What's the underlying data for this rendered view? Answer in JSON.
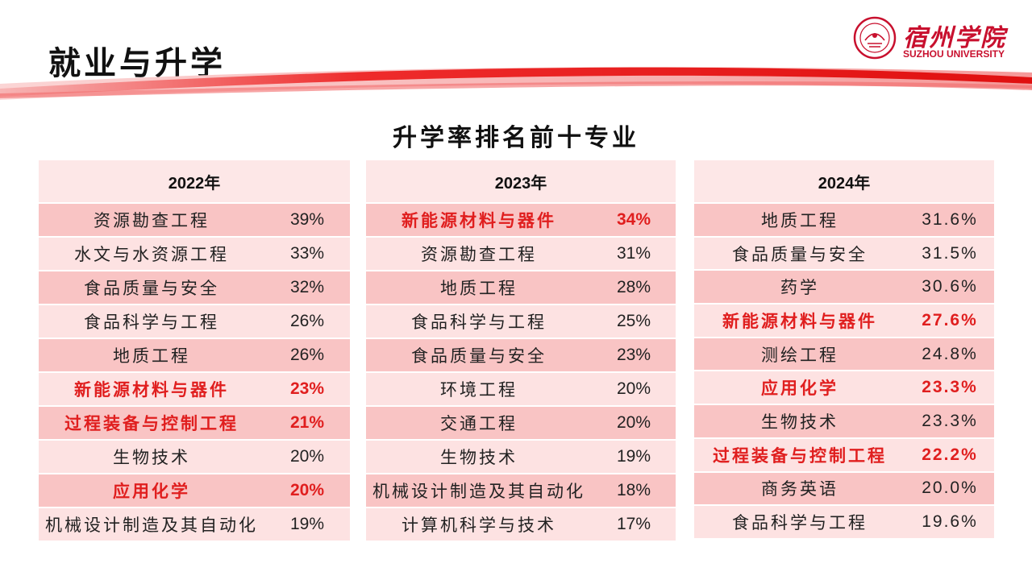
{
  "page_title": "就业与升学",
  "logo": {
    "cn": "宿州学院",
    "en": "SUZHOU UNIVERSITY"
  },
  "subtitle": "升学率排名前十专业",
  "colors": {
    "accent_red": "#e01e1e",
    "row_dark": "#f9c4c4",
    "row_light": "#fde2e2",
    "header_bg": "#fde7e7"
  },
  "tables": [
    {
      "year": "2022年",
      "rows": [
        {
          "name": "资源勘查工程",
          "pct": "39%",
          "highlight": false,
          "shade": "dark"
        },
        {
          "name": "水文与水资源工程",
          "pct": "33%",
          "highlight": false,
          "shade": "light"
        },
        {
          "name": "食品质量与安全",
          "pct": "32%",
          "highlight": false,
          "shade": "dark"
        },
        {
          "name": "食品科学与工程",
          "pct": "26%",
          "highlight": false,
          "shade": "light"
        },
        {
          "name": "地质工程",
          "pct": "26%",
          "highlight": false,
          "shade": "dark"
        },
        {
          "name": "新能源材料与器件",
          "pct": "23%",
          "highlight": true,
          "shade": "light"
        },
        {
          "name": "过程装备与控制工程",
          "pct": "21%",
          "highlight": true,
          "shade": "dark"
        },
        {
          "name": "生物技术",
          "pct": "20%",
          "highlight": false,
          "shade": "light"
        },
        {
          "name": "应用化学",
          "pct": "20%",
          "highlight": true,
          "shade": "dark"
        },
        {
          "name": "机械设计制造及其自动化",
          "pct": "19%",
          "highlight": false,
          "shade": "light"
        }
      ]
    },
    {
      "year": "2023年",
      "rows": [
        {
          "name": "新能源材料与器件",
          "pct": "34%",
          "highlight": true,
          "shade": "dark"
        },
        {
          "name": "资源勘查工程",
          "pct": "31%",
          "highlight": false,
          "shade": "light"
        },
        {
          "name": "地质工程",
          "pct": "28%",
          "highlight": false,
          "shade": "dark"
        },
        {
          "name": "食品科学与工程",
          "pct": "25%",
          "highlight": false,
          "shade": "light"
        },
        {
          "name": "食品质量与安全",
          "pct": "23%",
          "highlight": false,
          "shade": "dark"
        },
        {
          "name": "环境工程",
          "pct": "20%",
          "highlight": false,
          "shade": "light"
        },
        {
          "name": "交通工程",
          "pct": "20%",
          "highlight": false,
          "shade": "dark"
        },
        {
          "name": "生物技术",
          "pct": "19%",
          "highlight": false,
          "shade": "light"
        },
        {
          "name": "机械设计制造及其自动化",
          "pct": "18%",
          "highlight": false,
          "shade": "dark"
        },
        {
          "name": "计算机科学与技术",
          "pct": "17%",
          "highlight": false,
          "shade": "light"
        }
      ]
    },
    {
      "year": "2024年",
      "rows": [
        {
          "name": "地质工程",
          "pct": "31.6%",
          "highlight": false,
          "shade": "dark"
        },
        {
          "name": "食品质量与安全",
          "pct": "31.5%",
          "highlight": false,
          "shade": "light"
        },
        {
          "name": "药学",
          "pct": "30.6%",
          "highlight": false,
          "shade": "dark"
        },
        {
          "name": "新能源材料与器件",
          "pct": "27.6%",
          "highlight": true,
          "shade": "light"
        },
        {
          "name": "测绘工程",
          "pct": "24.8%",
          "highlight": false,
          "shade": "dark"
        },
        {
          "name": "应用化学",
          "pct": "23.3%",
          "highlight": true,
          "shade": "light"
        },
        {
          "name": "生物技术",
          "pct": "23.3%",
          "highlight": false,
          "shade": "dark"
        },
        {
          "name": "过程装备与控制工程",
          "pct": "22.2%",
          "highlight": true,
          "shade": "light"
        },
        {
          "name": "商务英语",
          "pct": "20.0%",
          "highlight": false,
          "shade": "dark"
        },
        {
          "name": "食品科学与工程",
          "pct": "19.6%",
          "highlight": false,
          "shade": "light"
        }
      ]
    }
  ]
}
